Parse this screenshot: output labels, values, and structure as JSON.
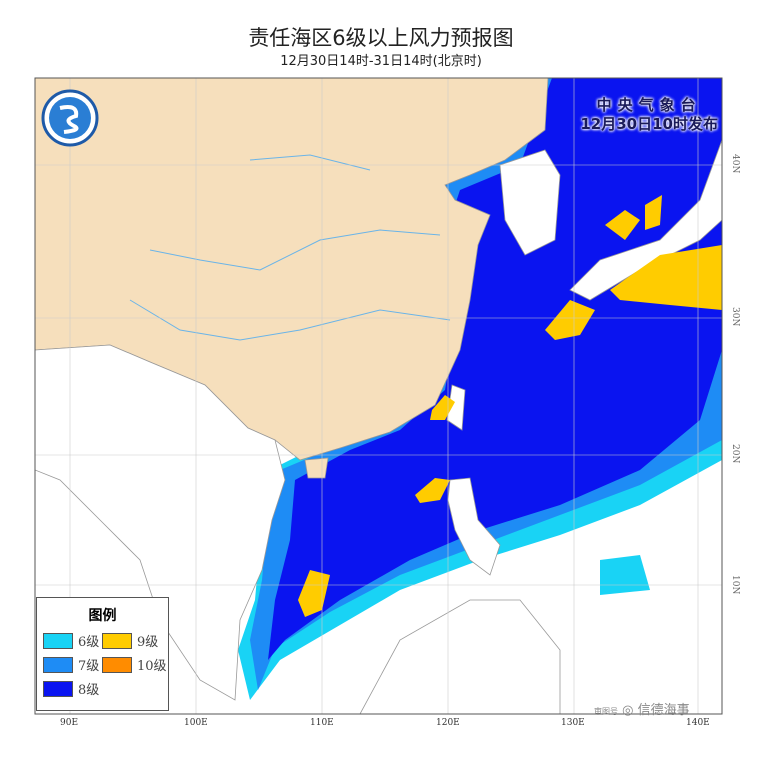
{
  "header": {
    "title": "责任海区6级以上风力预报图",
    "subtitle": "12月30日14时-31日14时(北京时)"
  },
  "issuer": {
    "org": "中央气象台",
    "time": "12月30日10时发布"
  },
  "legend": {
    "title": "图例",
    "items": [
      {
        "label": "6级",
        "color": "#19d3f5"
      },
      {
        "label": "7级",
        "color": "#1e8cf5"
      },
      {
        "label": "8级",
        "color": "#0a14f0"
      },
      {
        "label": "9级",
        "color": "#ffcc00"
      },
      {
        "label": "10级",
        "color": "#ff8c00"
      }
    ]
  },
  "axes": {
    "lon": [
      "90E",
      "100E",
      "110E",
      "120E",
      "130E",
      "140E"
    ],
    "lat": [
      "40N",
      "30N",
      "20N",
      "10N"
    ]
  },
  "colors": {
    "china_land": "#f6dfbc",
    "other_land": "#ffffff",
    "river": "#6ab4e8",
    "border": "#999999"
  },
  "watermark": {
    "small": "审图号",
    "text": "信德海事"
  },
  "logo": "cma-logo-icon"
}
